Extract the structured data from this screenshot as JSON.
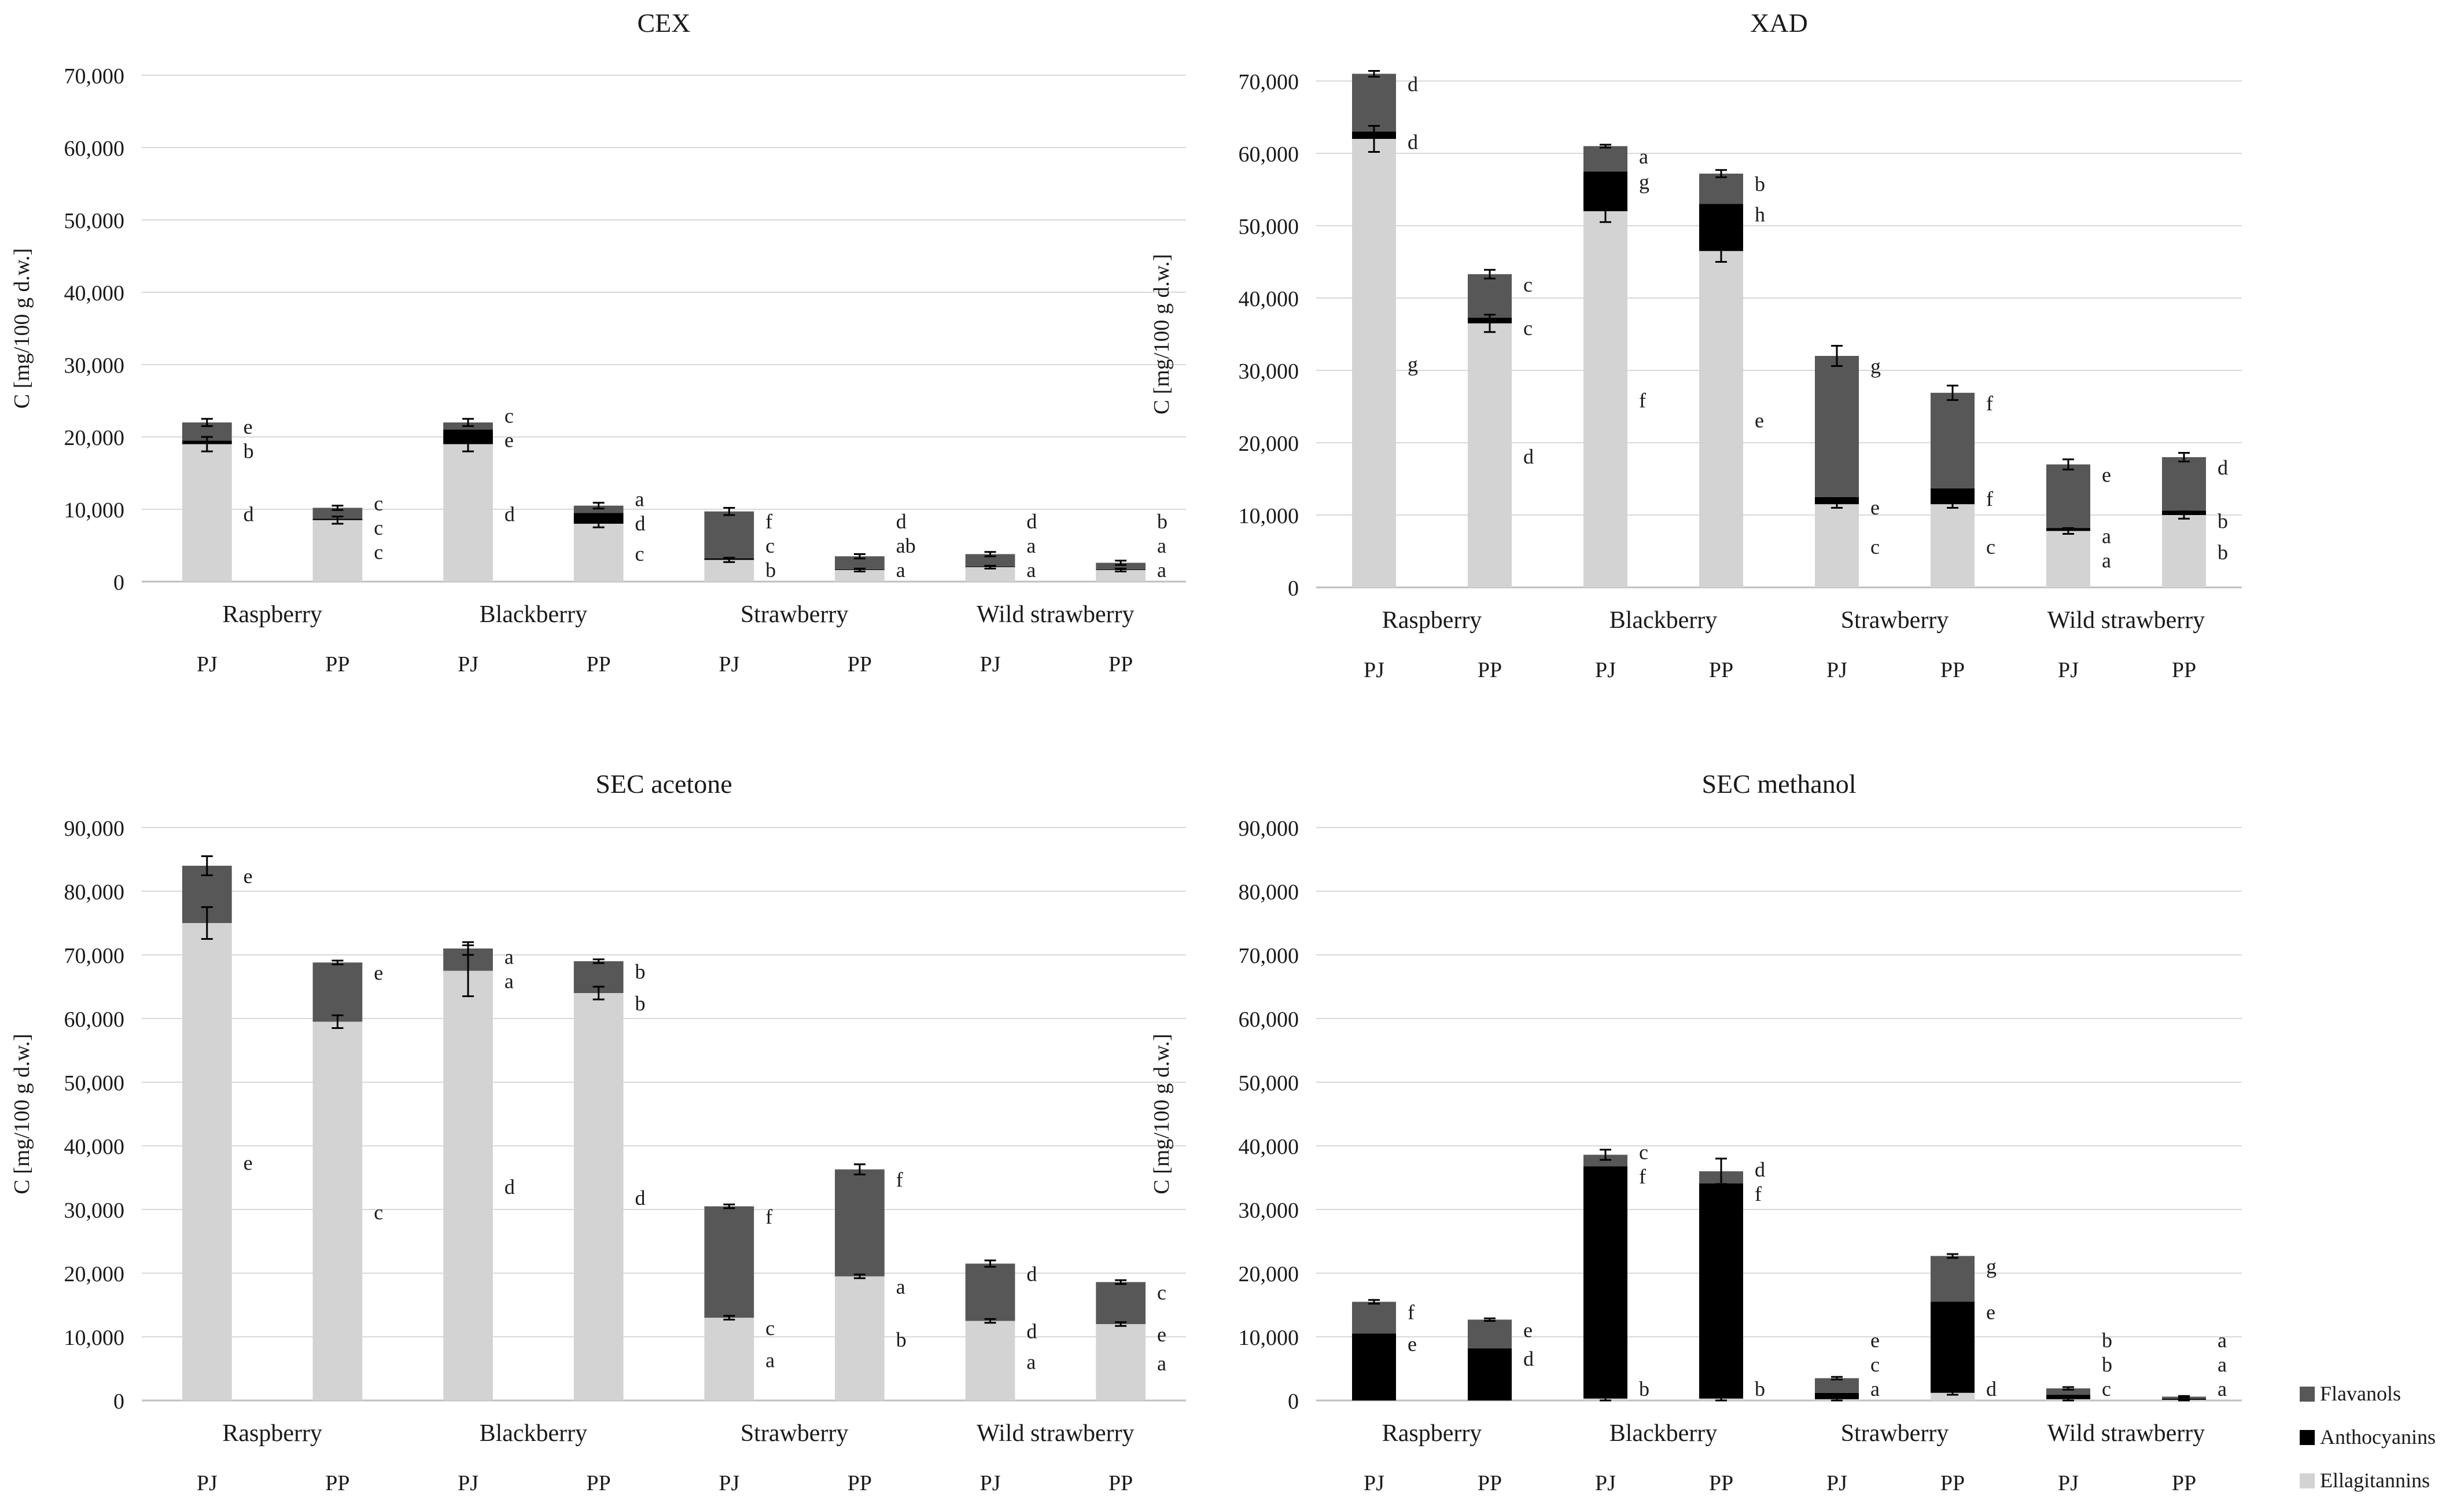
{
  "colors": {
    "Ellagitannins": "#d3d3d3",
    "Anthocyanins": "#000000",
    "Flavanols": "#575757",
    "grid": "#d9d9d9",
    "axis": "#bfbfbf",
    "text": "#1a1a1a"
  },
  "legend": [
    "Flavanols",
    "Anthocyanins",
    "Ellagitannins"
  ],
  "chart_data": [
    {
      "type": "bar",
      "stacked": true,
      "title": "CEX",
      "ylabel": "C [mg/100 g d.w.]",
      "ylim": [
        0,
        70000
      ],
      "yticks": [
        "0",
        "10,000",
        "20,000",
        "30,000",
        "40,000",
        "50,000",
        "60,000",
        "70,000"
      ],
      "groups": [
        "Raspberry",
        "Blackberry",
        "Strawberry",
        "Wild strawberry"
      ],
      "categories": [
        "PJ",
        "PP",
        "PJ",
        "PP",
        "PJ",
        "PP",
        "PJ",
        "PP"
      ],
      "series": [
        {
          "name": "Ellagitannins",
          "values": [
            19000,
            8500,
            19000,
            8000,
            3000,
            1600,
            2000,
            1600
          ]
        },
        {
          "name": "Anthocyanins",
          "values": [
            500,
            200,
            2000,
            1500,
            200,
            100,
            100,
            100
          ]
        },
        {
          "name": "Flavanols",
          "values": [
            2500,
            1500,
            1000,
            1000,
            6500,
            1800,
            1700,
            900
          ]
        }
      ],
      "errors": [
        [
          1000,
          500
        ],
        [
          500,
          300
        ],
        [
          1000,
          500
        ],
        [
          500,
          400
        ],
        [
          300,
          500
        ],
        [
          200,
          300
        ],
        [
          200,
          300
        ],
        [
          200,
          300
        ]
      ],
      "letters": [
        [
          "d",
          "b",
          "e"
        ],
        [
          "c",
          "c",
          "c"
        ],
        [
          "d",
          "e",
          "c"
        ],
        [
          "c",
          "d",
          "a"
        ],
        [
          "b",
          "c",
          "f"
        ],
        [
          "a",
          "ab",
          "d"
        ],
        [
          "a",
          "a",
          "d"
        ],
        [
          "a",
          "a",
          "b"
        ]
      ]
    },
    {
      "type": "bar",
      "stacked": true,
      "title": "XAD",
      "ylabel": "C [mg/100 g d.w.]",
      "ylim": [
        0,
        70000
      ],
      "yticks": [
        "0",
        "10,000",
        "20,000",
        "30,000",
        "40,000",
        "50,000",
        "60,000",
        "70,000"
      ],
      "groups": [
        "Raspberry",
        "Blackberry",
        "Strawberry",
        "Wild strawberry"
      ],
      "categories": [
        "PJ",
        "PP",
        "PJ",
        "PP",
        "PJ",
        "PP",
        "PJ",
        "PP"
      ],
      "series": [
        {
          "name": "Ellagitannins",
          "values": [
            62000,
            36500,
            52000,
            46500,
            11500,
            11500,
            7800,
            10000
          ]
        },
        {
          "name": "Anthocyanins",
          "values": [
            1000,
            800,
            5500,
            6500,
            1000,
            2200,
            400,
            600
          ]
        },
        {
          "name": "Flavanols",
          "values": [
            8000,
            6000,
            3500,
            4200,
            19500,
            13200,
            8800,
            7400
          ]
        }
      ],
      "errors": [
        [
          1800,
          400
        ],
        [
          1200,
          600
        ],
        [
          1500,
          200
        ],
        [
          1500,
          500
        ],
        [
          500,
          1400
        ],
        [
          500,
          1000
        ],
        [
          400,
          700
        ],
        [
          500,
          600
        ]
      ],
      "letters": [
        [
          "g",
          "d",
          "d"
        ],
        [
          "d",
          "c",
          "c"
        ],
        [
          "f",
          "g",
          "a"
        ],
        [
          "e",
          "h",
          "b"
        ],
        [
          "c",
          "e",
          "g"
        ],
        [
          "c",
          "f",
          "f"
        ],
        [
          "a",
          "a",
          "e"
        ],
        [
          "b",
          "b",
          "d"
        ]
      ]
    },
    {
      "type": "bar",
      "stacked": true,
      "title": "SEC acetone",
      "ylabel": "C [mg/100 g d.w.]",
      "ylim": [
        0,
        90000
      ],
      "yticks": [
        "0",
        "10,000",
        "20,000",
        "30,000",
        "40,000",
        "50,000",
        "60,000",
        "70,000",
        "80,000",
        "90,000"
      ],
      "groups": [
        "Raspberry",
        "Blackberry",
        "Strawberry",
        "Wild strawberry"
      ],
      "categories": [
        "PJ",
        "PP",
        "PJ",
        "PP",
        "PJ",
        "PP",
        "PJ",
        "PP"
      ],
      "series": [
        {
          "name": "Ellagitannins",
          "values": [
            75000,
            59500,
            67500,
            64000,
            13000,
            19500,
            12500,
            12000
          ]
        },
        {
          "name": "Anthocyanins",
          "values": [
            0,
            0,
            0,
            0,
            0,
            0,
            0,
            0
          ]
        },
        {
          "name": "Flavanols",
          "values": [
            9000,
            9300,
            3500,
            5000,
            17500,
            16800,
            9000,
            6600
          ]
        }
      ],
      "errors": [
        [
          2500,
          1500
        ],
        [
          1000,
          300
        ],
        [
          4000,
          1000
        ],
        [
          1000,
          300
        ],
        [
          300,
          300
        ],
        [
          300,
          800
        ],
        [
          300,
          500
        ],
        [
          300,
          300
        ]
      ],
      "letters": [
        [
          "e",
          "",
          "e"
        ],
        [
          "c",
          "",
          "e"
        ],
        [
          "d",
          "a",
          "a"
        ],
        [
          "d",
          "b",
          "b"
        ],
        [
          "a",
          "c",
          "f"
        ],
        [
          "b",
          "a",
          "f"
        ],
        [
          "a",
          "d",
          "d"
        ],
        [
          "a",
          "e",
          "c"
        ]
      ]
    },
    {
      "type": "bar",
      "stacked": true,
      "title": "SEC methanol",
      "ylabel": "C [mg/100 g d.w.]",
      "ylim": [
        0,
        90000
      ],
      "yticks": [
        "0",
        "10,000",
        "20,000",
        "30,000",
        "40,000",
        "50,000",
        "60,000",
        "70,000",
        "80,000",
        "90,000"
      ],
      "groups": [
        "Raspberry",
        "Blackberry",
        "Strawberry",
        "Wild strawberry"
      ],
      "categories": [
        "PJ",
        "PP",
        "PJ",
        "PP",
        "PJ",
        "PP",
        "PJ",
        "PP"
      ],
      "series": [
        {
          "name": "Ellagitannins",
          "values": [
            0,
            0,
            300,
            300,
            200,
            1200,
            200,
            100
          ]
        },
        {
          "name": "Anthocyanins",
          "values": [
            10500,
            8200,
            36500,
            33800,
            1000,
            14300,
            700,
            200
          ]
        },
        {
          "name": "Flavanols",
          "values": [
            5000,
            4500,
            1800,
            1900,
            2300,
            7200,
            1000,
            300
          ]
        }
      ],
      "errors": [
        [
          800,
          300
        ],
        [
          500,
          200
        ],
        [
          500,
          800
        ],
        [
          1500,
          2000
        ],
        [
          200,
          200
        ],
        [
          300,
          300
        ],
        [
          300,
          200
        ],
        [
          100,
          100
        ]
      ],
      "letters": [
        [
          "",
          "e",
          "f"
        ],
        [
          "",
          "d",
          "e"
        ],
        [
          "b",
          "f",
          "c"
        ],
        [
          "b",
          "f",
          "d"
        ],
        [
          "a",
          "c",
          "e"
        ],
        [
          "d",
          "e",
          "g"
        ],
        [
          "c",
          "b",
          "b"
        ],
        [
          "a",
          "a",
          "a"
        ]
      ]
    }
  ]
}
